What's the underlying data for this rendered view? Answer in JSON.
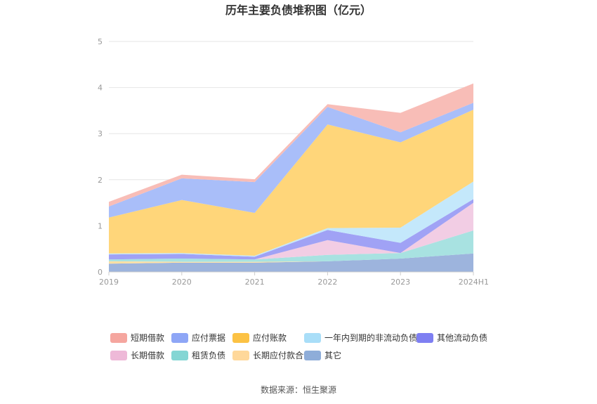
{
  "chart_data": {
    "type": "area",
    "stacked": true,
    "title": "历年主要负债堆积图（亿元）",
    "categories": [
      "2019",
      "2020",
      "2021",
      "2022",
      "2023",
      "2024H1"
    ],
    "ylim": [
      0,
      5
    ],
    "yticks": [
      0,
      1,
      2,
      3,
      4,
      5
    ],
    "grid": true,
    "legend_position": "bottom",
    "series": [
      {
        "name": "其它",
        "color": "#9db4dd",
        "values": [
          0.18,
          0.2,
          0.2,
          0.23,
          0.29,
          0.4
        ]
      },
      {
        "name": "长期应付款合计",
        "color": "#ffe0a3",
        "values": [
          0.05,
          0.02,
          0.02,
          0.0,
          0.0,
          0.0
        ]
      },
      {
        "name": "租赁负债",
        "color": "#a8e2e1",
        "values": [
          0.04,
          0.07,
          0.05,
          0.14,
          0.12,
          0.5
        ]
      },
      {
        "name": "长期借款",
        "color": "#f2cde4",
        "values": [
          0.0,
          0.0,
          0.0,
          0.32,
          0.0,
          0.6
        ]
      },
      {
        "name": "其他流动负债",
        "color": "#a0a2f5",
        "values": [
          0.11,
          0.1,
          0.06,
          0.22,
          0.22,
          0.08
        ]
      },
      {
        "name": "一年内到期的非流动负债",
        "color": "#c4e8fb",
        "values": [
          0.02,
          0.02,
          0.02,
          0.04,
          0.33,
          0.38
        ]
      },
      {
        "name": "应付账款",
        "color": "#ffd67a",
        "values": [
          0.78,
          1.15,
          0.93,
          2.25,
          1.85,
          1.56
        ]
      },
      {
        "name": "应付票据",
        "color": "#a9bef9",
        "values": [
          0.24,
          0.47,
          0.67,
          0.38,
          0.22,
          0.15
        ]
      },
      {
        "name": "短期借款",
        "color": "#f8bdb7",
        "values": [
          0.1,
          0.08,
          0.06,
          0.06,
          0.42,
          0.42
        ]
      }
    ],
    "legend": [
      {
        "name": "短期借款",
        "color": "#f5a69f"
      },
      {
        "name": "应付票据",
        "color": "#8ea6f6"
      },
      {
        "name": "应付账款",
        "color": "#fcc244"
      },
      {
        "name": "一年内到期的非流动负债",
        "color": "#a9def8"
      },
      {
        "name": "其他流动负债",
        "color": "#7e7ff2"
      },
      {
        "name": "长期借款",
        "color": "#eeb9d8"
      },
      {
        "name": "租赁负债",
        "color": "#84d6d4"
      },
      {
        "name": "长期应付款合计",
        "color": "#ffd89a"
      },
      {
        "name": "其它",
        "color": "#8eadd9"
      }
    ]
  },
  "source": "数据来源：恒生聚源"
}
